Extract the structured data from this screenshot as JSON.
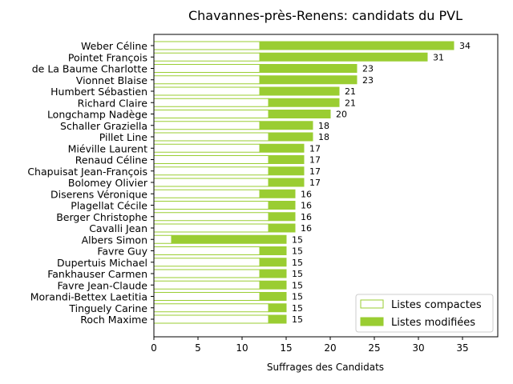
{
  "chart_data": {
    "type": "bar",
    "orientation": "horizontal",
    "stacked": true,
    "title": "Chavannes-près-Renens: candidats du PVL",
    "xlabel": "Suffrages des Candidats",
    "ylabel": "",
    "xlim": [
      0,
      39
    ],
    "xticks": [
      "0",
      "5",
      "10",
      "15",
      "20",
      "25",
      "30",
      "35"
    ],
    "grid": false,
    "legend_position": "lower-right",
    "colors": {
      "accent": "#9acd32",
      "compact_fill": "#ffffff"
    },
    "categories": [
      "Weber Céline",
      "Pointet François",
      "de La Baume Charlotte",
      "Vionnet Blaise",
      "Humbert Sébastien",
      "Richard Claire",
      "Longchamp Nadège",
      "Schaller Graziella",
      "Pillet Line",
      "Miéville Laurent",
      "Renaud Céline",
      "Chapuisat Jean-François",
      "Bolomey Olivier",
      "Diserens Véronique",
      "Plagellat Cécile",
      "Berger Christophe",
      "Cavalli Jean",
      "Albers Simon",
      "Favre Guy",
      "Dupertuis Michael",
      "Fankhauser Carmen",
      "Favre Jean-Claude",
      "Morandi-Bettex Laetitia",
      "Tinguely Carine",
      "Roch Maxime"
    ],
    "series": [
      {
        "name": "Listes compactes",
        "values": [
          12,
          12,
          12,
          12,
          12,
          13,
          13,
          12,
          13,
          12,
          13,
          13,
          13,
          12,
          13,
          13,
          13,
          2,
          12,
          12,
          12,
          12,
          12,
          13,
          13
        ]
      },
      {
        "name": "Listes modifiées",
        "values": [
          22,
          19,
          11,
          11,
          9,
          8,
          7,
          6,
          5,
          5,
          4,
          4,
          4,
          4,
          3,
          3,
          3,
          13,
          3,
          3,
          3,
          3,
          3,
          2,
          2
        ]
      }
    ],
    "totals": [
      "34",
      "31",
      "23",
      "23",
      "21",
      "21",
      "20",
      "18",
      "18",
      "17",
      "17",
      "17",
      "17",
      "16",
      "16",
      "16",
      "16",
      "15",
      "15",
      "15",
      "15",
      "15",
      "15",
      "15",
      "15"
    ]
  }
}
